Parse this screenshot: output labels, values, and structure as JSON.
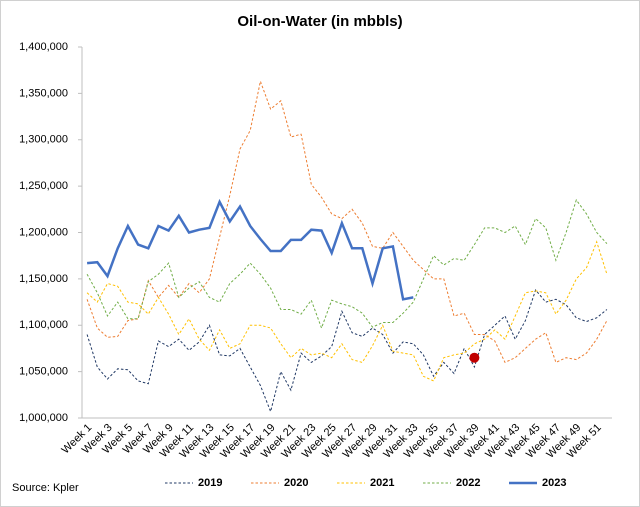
{
  "chart_data": {
    "type": "line",
    "title": "Oil-on-Water (in mbbls)",
    "source": "Source: Kpler",
    "categories": [
      "Week 1",
      null,
      "Week 3",
      null,
      "Week 5",
      null,
      "Week 7",
      null,
      "Week 9",
      null,
      "Week 11",
      null,
      "Week 13",
      null,
      "Week 15",
      null,
      "Week 17",
      null,
      "Week 19",
      null,
      "Week 21",
      null,
      "Week 23",
      null,
      "Week 25",
      null,
      "Week 27",
      null,
      "Week 29",
      null,
      "Week 31",
      null,
      "Week 33",
      null,
      "Week 35",
      null,
      "Week 37",
      null,
      "Week 39",
      null,
      "Week 41",
      null,
      "Week 43",
      null,
      "Week 45",
      null,
      "Week 47",
      null,
      "Week 49",
      null,
      "Week 51",
      null
    ],
    "ylim": [
      1000000,
      1400000
    ],
    "yticks": [
      {
        "value": 1000000,
        "label": "1,000,000"
      },
      {
        "value": 1050000,
        "label": "1,050,000"
      },
      {
        "value": 1100000,
        "label": "1,100,000"
      },
      {
        "value": 1150000,
        "label": "1,150,000"
      },
      {
        "value": 1200000,
        "label": "1,200,000"
      },
      {
        "value": 1250000,
        "label": "1,250,000"
      },
      {
        "value": 1300000,
        "label": "1,300,000"
      },
      {
        "value": 1350000,
        "label": "1,350,000"
      },
      {
        "value": 1400000,
        "label": "1,400,000"
      }
    ],
    "grid": false,
    "legend": "bottom",
    "series": [
      {
        "name": "2019",
        "color": "#203864",
        "style": "dotted",
        "values": [
          1090000,
          1055000,
          1042000,
          1053000,
          1052000,
          1040000,
          1037000,
          1083000,
          1077000,
          1085000,
          1073000,
          1082000,
          1100000,
          1068000,
          1067000,
          1075000,
          1055000,
          1035000,
          1007000,
          1050000,
          1030000,
          1070000,
          1060000,
          1067000,
          1077000,
          1115000,
          1092000,
          1088000,
          1097000,
          1090000,
          1070000,
          1082000,
          1080000,
          1068000,
          1045000,
          1060000,
          1048000,
          1075000,
          1055000,
          1090000,
          1100000,
          1110000,
          1085000,
          1105000,
          1138000,
          1125000,
          1128000,
          1122000,
          1108000,
          1104000,
          1108000,
          1117000
        ]
      },
      {
        "name": "2020",
        "color": "#ed7d31",
        "style": "dotted",
        "values": [
          1128000,
          1097000,
          1087000,
          1088000,
          1105000,
          1107000,
          1148000,
          1130000,
          1143000,
          1130000,
          1145000,
          1135000,
          1150000,
          1195000,
          1240000,
          1290000,
          1310000,
          1363000,
          1333000,
          1342000,
          1303000,
          1306000,
          1252000,
          1238000,
          1220000,
          1215000,
          1225000,
          1210000,
          1185000,
          1183000,
          1200000,
          1185000,
          1170000,
          1160000,
          1150000,
          1150000,
          1110000,
          1113000,
          1090000,
          1090000,
          1083000,
          1060000,
          1065000,
          1075000,
          1085000,
          1092000,
          1060000,
          1065000,
          1063000,
          1070000,
          1085000,
          1105000
        ]
      },
      {
        "name": "2021",
        "color": "#ffc000",
        "style": "dotted",
        "values": [
          1135000,
          1125000,
          1145000,
          1142000,
          1125000,
          1123000,
          1112000,
          1130000,
          1112000,
          1090000,
          1107000,
          1085000,
          1073000,
          1095000,
          1075000,
          1080000,
          1100000,
          1100000,
          1097000,
          1080000,
          1065000,
          1075000,
          1068000,
          1070000,
          1065000,
          1080000,
          1063000,
          1060000,
          1078000,
          1100000,
          1072000,
          1070000,
          1068000,
          1045000,
          1040000,
          1065000,
          1068000,
          1070000,
          1080000,
          1085000,
          1095000,
          1085000,
          1110000,
          1135000,
          1137000,
          1135000,
          1112000,
          1127000,
          1150000,
          1162000,
          1190000,
          1155000
        ]
      },
      {
        "name": "2022",
        "color": "#70ad47",
        "style": "dotted",
        "values": [
          1155000,
          1135000,
          1110000,
          1125000,
          1107000,
          1107000,
          1147000,
          1155000,
          1167000,
          1130000,
          1140000,
          1147000,
          1130000,
          1125000,
          1145000,
          1155000,
          1167000,
          1155000,
          1140000,
          1117000,
          1117000,
          1112000,
          1127000,
          1097000,
          1127000,
          1123000,
          1120000,
          1113000,
          1098000,
          1103000,
          1103000,
          1113000,
          1125000,
          1150000,
          1175000,
          1165000,
          1172000,
          1170000,
          1187000,
          1205000,
          1205000,
          1200000,
          1207000,
          1187000,
          1215000,
          1205000,
          1170000,
          1200000,
          1235000,
          1220000,
          1200000,
          1188000
        ]
      },
      {
        "name": "2023",
        "color": "#4472c4",
        "style": "solid",
        "values": [
          1167000,
          1168000,
          1153000,
          1183000,
          1207000,
          1187000,
          1183000,
          1207000,
          1202000,
          1218000,
          1200000,
          1203000,
          1205000,
          1233000,
          1212000,
          1228000,
          1207000,
          1193000,
          1180000,
          1180000,
          1192000,
          1192000,
          1203000,
          1202000,
          1178000,
          1210000,
          1183000,
          1183000,
          1145000,
          1183000,
          1185000,
          1128000,
          1130000,
          null,
          null,
          null,
          null,
          null,
          null,
          null,
          null,
          null,
          null,
          null,
          null,
          null,
          null,
          null,
          null,
          null,
          null,
          null
        ]
      }
    ],
    "highlight": {
      "category": "Week 39",
      "value": 1065000,
      "color": "#c00000"
    }
  }
}
